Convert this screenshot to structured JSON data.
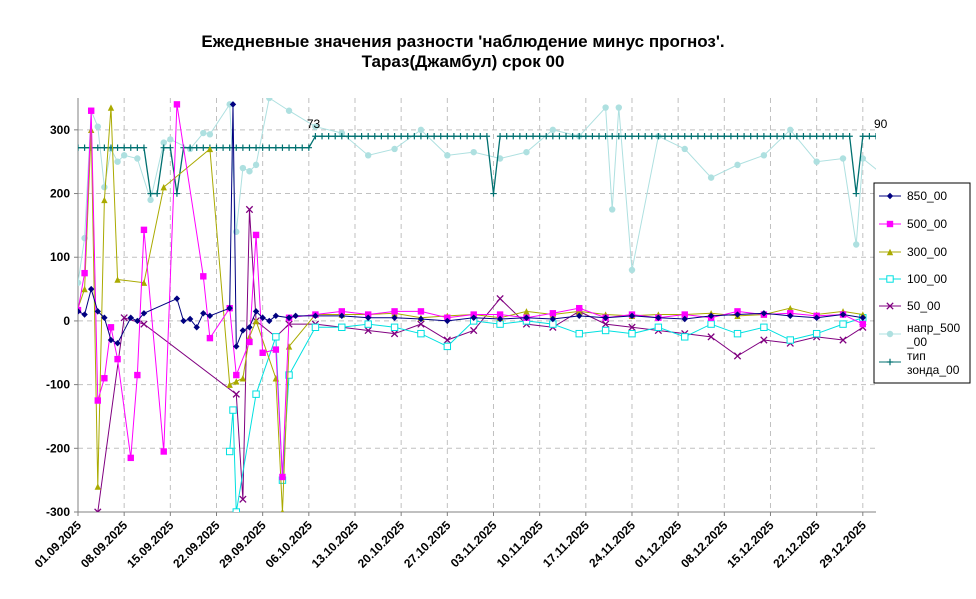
{
  "chart_data": {
    "type": "line",
    "title_line1": "Ежедневные значения разности 'наблюдение минус прогноз'.",
    "title_line2": "Тараз(Джамбул)    срок 00",
    "ylim": [
      -300,
      350
    ],
    "yticks": [
      -300,
      -200,
      -100,
      0,
      100,
      200,
      300
    ],
    "x_start": "2025-09-01",
    "x_end": "2025-12-31",
    "xtick_labels": [
      "01.09.2025",
      "08.09.2025",
      "15.09.2025",
      "22.09.2025",
      "29.09.2025",
      "06.10.2025",
      "13.10.2025",
      "20.10.2025",
      "27.10.2025",
      "03.11.2025",
      "10.11.2025",
      "17.11.2025",
      "24.11.2025",
      "01.12.2025",
      "08.12.2025",
      "15.12.2025",
      "22.12.2025",
      "29.12.2025"
    ],
    "grid": true,
    "legend_position": "right",
    "annotations": [
      {
        "text": "73",
        "x": "2025-10-06",
        "y": 290
      },
      {
        "text": "90",
        "x": "2025-12-31",
        "y": 290
      }
    ],
    "series": [
      {
        "name": "850_00",
        "color": "#000080",
        "marker": "diamond",
        "values": [
          [
            0,
            15
          ],
          [
            1,
            10
          ],
          [
            2,
            50
          ],
          [
            3,
            15
          ],
          [
            4,
            5
          ],
          [
            5,
            -30
          ],
          [
            6,
            -35
          ],
          [
            8,
            5
          ],
          [
            9,
            0
          ],
          [
            10,
            12
          ],
          [
            15,
            35
          ],
          [
            16,
            0
          ],
          [
            17,
            3
          ],
          [
            18,
            -10
          ],
          [
            19,
            12
          ],
          [
            20,
            8
          ],
          [
            23,
            20
          ],
          [
            23.5,
            340
          ],
          [
            24,
            -40
          ],
          [
            25,
            -15
          ],
          [
            26,
            -10
          ],
          [
            27,
            15
          ],
          [
            28,
            5
          ],
          [
            29,
            0
          ],
          [
            30,
            8
          ],
          [
            32,
            5
          ],
          [
            33,
            8
          ],
          [
            36,
            8
          ],
          [
            40,
            8
          ],
          [
            44,
            5
          ],
          [
            48,
            5
          ],
          [
            52,
            3
          ],
          [
            56,
            0
          ],
          [
            60,
            5
          ],
          [
            64,
            3
          ],
          [
            68,
            5
          ],
          [
            72,
            3
          ],
          [
            76,
            8
          ],
          [
            80,
            5
          ],
          [
            84,
            8
          ],
          [
            88,
            5
          ],
          [
            92,
            3
          ],
          [
            96,
            8
          ],
          [
            100,
            10
          ],
          [
            104,
            12
          ],
          [
            108,
            8
          ],
          [
            112,
            5
          ],
          [
            116,
            10
          ],
          [
            119,
            5
          ]
        ]
      },
      {
        "name": "500_00",
        "color": "#ff00ff",
        "marker": "square",
        "values": [
          [
            0,
            17
          ],
          [
            1,
            75
          ],
          [
            2,
            330
          ],
          [
            3,
            -125
          ],
          [
            4,
            -90
          ],
          [
            5,
            -10
          ],
          [
            6,
            -60
          ],
          [
            8,
            -215
          ],
          [
            9,
            -85
          ],
          [
            10,
            143
          ],
          [
            13,
            -205
          ],
          [
            15,
            340
          ],
          [
            19,
            70
          ],
          [
            20,
            -27
          ],
          [
            23,
            20
          ],
          [
            24,
            -85
          ],
          [
            26,
            -33
          ],
          [
            27,
            135
          ],
          [
            28,
            -50
          ],
          [
            30,
            -45
          ],
          [
            31,
            -245
          ],
          [
            32,
            5
          ],
          [
            36,
            10
          ],
          [
            40,
            15
          ],
          [
            44,
            10
          ],
          [
            48,
            15
          ],
          [
            52,
            15
          ],
          [
            56,
            5
          ],
          [
            60,
            10
          ],
          [
            64,
            10
          ],
          [
            68,
            5
          ],
          [
            72,
            12
          ],
          [
            76,
            20
          ],
          [
            80,
            5
          ],
          [
            84,
            10
          ],
          [
            88,
            5
          ],
          [
            92,
            10
          ],
          [
            96,
            5
          ],
          [
            100,
            15
          ],
          [
            104,
            10
          ],
          [
            108,
            12
          ],
          [
            112,
            8
          ],
          [
            116,
            10
          ],
          [
            119,
            -5
          ]
        ]
      },
      {
        "name": "300_00",
        "color": "#aaaa00",
        "marker": "triangle",
        "values": [
          [
            0,
            20
          ],
          [
            1,
            50
          ],
          [
            2,
            300
          ],
          [
            3,
            -260
          ],
          [
            4,
            190
          ],
          [
            5,
            335
          ],
          [
            6,
            65
          ],
          [
            10,
            60
          ],
          [
            13,
            210
          ],
          [
            20,
            270
          ],
          [
            23,
            -100
          ],
          [
            24,
            -95
          ],
          [
            25,
            -90
          ],
          [
            26,
            -25
          ],
          [
            27,
            0
          ],
          [
            30,
            -90
          ],
          [
            31,
            -300
          ],
          [
            32,
            -40
          ],
          [
            36,
            10
          ],
          [
            40,
            10
          ],
          [
            44,
            10
          ],
          [
            48,
            12
          ],
          [
            52,
            5
          ],
          [
            56,
            8
          ],
          [
            60,
            10
          ],
          [
            64,
            5
          ],
          [
            68,
            15
          ],
          [
            72,
            10
          ],
          [
            76,
            15
          ],
          [
            80,
            10
          ],
          [
            84,
            8
          ],
          [
            88,
            10
          ],
          [
            92,
            10
          ],
          [
            96,
            12
          ],
          [
            100,
            8
          ],
          [
            104,
            10
          ],
          [
            108,
            20
          ],
          [
            112,
            10
          ],
          [
            116,
            15
          ],
          [
            119,
            10
          ]
        ]
      },
      {
        "name": "100_00",
        "color": "#00e0e0",
        "marker": "square-open",
        "values": [
          [
            23,
            -205
          ],
          [
            23.5,
            -140
          ],
          [
            24,
            -300
          ],
          [
            27,
            -115
          ],
          [
            30,
            -25
          ],
          [
            31,
            -250
          ],
          [
            32,
            -85
          ],
          [
            36,
            -10
          ],
          [
            40,
            -10
          ],
          [
            44,
            -5
          ],
          [
            48,
            -10
          ],
          [
            52,
            -20
          ],
          [
            56,
            -40
          ],
          [
            60,
            0
          ],
          [
            64,
            -5
          ],
          [
            68,
            0
          ],
          [
            72,
            -5
          ],
          [
            76,
            -20
          ],
          [
            80,
            -15
          ],
          [
            84,
            -20
          ],
          [
            88,
            -10
          ],
          [
            92,
            -25
          ],
          [
            96,
            -5
          ],
          [
            100,
            -20
          ],
          [
            104,
            -10
          ],
          [
            108,
            -30
          ],
          [
            112,
            -20
          ],
          [
            116,
            -5
          ],
          [
            119,
            5
          ]
        ]
      },
      {
        "name": "50_00",
        "color": "#800080",
        "marker": "x",
        "values": [
          [
            3,
            -300
          ],
          [
            7,
            5
          ],
          [
            10,
            -5
          ],
          [
            24,
            -115
          ],
          [
            25,
            -280
          ],
          [
            26,
            175
          ],
          [
            27,
            0
          ],
          [
            30,
            -25
          ],
          [
            32,
            -5
          ],
          [
            36,
            -5
          ],
          [
            40,
            -10
          ],
          [
            44,
            -15
          ],
          [
            48,
            -20
          ],
          [
            52,
            -5
          ],
          [
            56,
            -30
          ],
          [
            60,
            -15
          ],
          [
            64,
            35
          ],
          [
            68,
            -5
          ],
          [
            72,
            -10
          ],
          [
            76,
            15
          ],
          [
            80,
            -5
          ],
          [
            84,
            -10
          ],
          [
            88,
            -15
          ],
          [
            92,
            -20
          ],
          [
            96,
            -25
          ],
          [
            100,
            -55
          ],
          [
            104,
            -30
          ],
          [
            108,
            -35
          ],
          [
            112,
            -25
          ],
          [
            116,
            -30
          ],
          [
            119,
            -10
          ]
        ]
      },
      {
        "name": "напр_500_00",
        "color": "#aee0e0",
        "marker": "circle",
        "values": [
          [
            0,
            60
          ],
          [
            1,
            130
          ],
          [
            2,
            330
          ],
          [
            3,
            305
          ],
          [
            4,
            210
          ],
          [
            5,
            270
          ],
          [
            6,
            250
          ],
          [
            7,
            260
          ],
          [
            9,
            255
          ],
          [
            11,
            190
          ],
          [
            13,
            280
          ],
          [
            14,
            285
          ],
          [
            17,
            270
          ],
          [
            19,
            295
          ],
          [
            20,
            293
          ],
          [
            23,
            340
          ],
          [
            24,
            140
          ],
          [
            25,
            240
          ],
          [
            26,
            235
          ],
          [
            27,
            245
          ],
          [
            29,
            350
          ],
          [
            32,
            330
          ],
          [
            36,
            305
          ],
          [
            40,
            295
          ],
          [
            44,
            260
          ],
          [
            48,
            270
          ],
          [
            52,
            300
          ],
          [
            56,
            260
          ],
          [
            60,
            265
          ],
          [
            64,
            255
          ],
          [
            68,
            265
          ],
          [
            72,
            300
          ],
          [
            76,
            290
          ],
          [
            80,
            335
          ],
          [
            81,
            175
          ],
          [
            82,
            335
          ],
          [
            84,
            80
          ],
          [
            88,
            290
          ],
          [
            92,
            270
          ],
          [
            96,
            225
          ],
          [
            100,
            245
          ],
          [
            104,
            260
          ],
          [
            108,
            300
          ],
          [
            112,
            250
          ],
          [
            116,
            255
          ],
          [
            118,
            120
          ],
          [
            119,
            255
          ],
          [
            122,
            230
          ]
        ]
      },
      {
        "name": "тип зонда_00",
        "color": "#007070",
        "marker": "plus",
        "values": [
          [
            0,
            272
          ],
          [
            10,
            272
          ],
          [
            11,
            200
          ],
          [
            12,
            200
          ],
          [
            13,
            272
          ],
          [
            14,
            272
          ],
          [
            15,
            200
          ],
          [
            16,
            272
          ],
          [
            35,
            272
          ],
          [
            36,
            290
          ],
          [
            62,
            290
          ],
          [
            63,
            200
          ],
          [
            64,
            290
          ],
          [
            117,
            290
          ],
          [
            118,
            200
          ],
          [
            119,
            290
          ],
          [
            121,
            290
          ]
        ]
      }
    ]
  }
}
